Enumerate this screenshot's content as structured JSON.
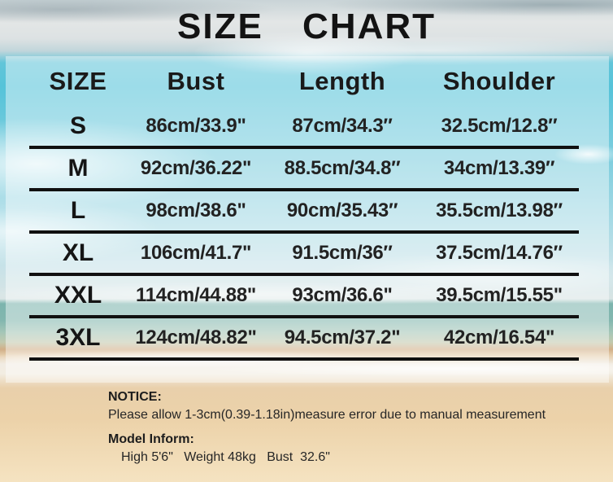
{
  "title": "SIZE CHART",
  "table": {
    "headers": [
      "SIZE",
      "Bust",
      "Length",
      "Shoulder"
    ],
    "rows": [
      {
        "size": "S",
        "bust": "86cm/33.9\"",
        "length": "87cm/34.3″",
        "shoulder": "32.5cm/12.8″"
      },
      {
        "size": "M",
        "bust": "92cm/36.22\"",
        "length": "88.5cm/34.8″",
        "shoulder": "34cm/13.39″"
      },
      {
        "size": "L",
        "bust": "98cm/38.6\"",
        "length": "90cm/35.43″",
        "shoulder": "35.5cm/13.98″"
      },
      {
        "size": "XL",
        "bust": "106cm/41.7\"",
        "length": "91.5cm/36″",
        "shoulder": "37.5cm/14.76″"
      },
      {
        "size": "XXL",
        "bust": "114cm/44.88\"",
        "length": "93cm/36.6\"",
        "shoulder": "39.5cm/15.55\""
      },
      {
        "size": "3XL",
        "bust": "124cm/48.82\"",
        "length": "94.5cm/37.2\"",
        "shoulder": "42cm/16.54\""
      }
    ]
  },
  "notice": {
    "label": "NOTICE:",
    "text": "Please allow 1-3cm(0.39-1.18in)measure error due to manual measurement",
    "model_label": "Model Inform:",
    "model_stats": "High 5'6\"   Weight 48kg   Bust  32.6\""
  },
  "chart_data": {
    "type": "table",
    "title": "SIZE CHART",
    "columns": [
      "SIZE",
      "Bust",
      "Length",
      "Shoulder"
    ],
    "rows": [
      [
        "S",
        "86cm/33.9\"",
        "87cm/34.3″",
        "32.5cm/12.8″"
      ],
      [
        "M",
        "92cm/36.22\"",
        "88.5cm/34.8″",
        "34cm/13.39″"
      ],
      [
        "L",
        "98cm/38.6\"",
        "90cm/35.43″",
        "35.5cm/13.98″"
      ],
      [
        "XL",
        "106cm/41.7\"",
        "91.5cm/36″",
        "37.5cm/14.76″"
      ],
      [
        "XXL",
        "114cm/44.88\"",
        "93cm/36.6\"",
        "39.5cm/15.55\""
      ],
      [
        "3XL",
        "124cm/48.82\"",
        "94.5cm/37.2\"",
        "42cm/16.54\""
      ]
    ]
  },
  "colors": {
    "text": "#131313",
    "rule_line": "#101010",
    "panel_overlay": "rgba(255,255,255,0.42)",
    "sky_cyan": "#55c3d9",
    "sea_teal": "#7cb4ad",
    "sand": "#ecd2a9"
  }
}
